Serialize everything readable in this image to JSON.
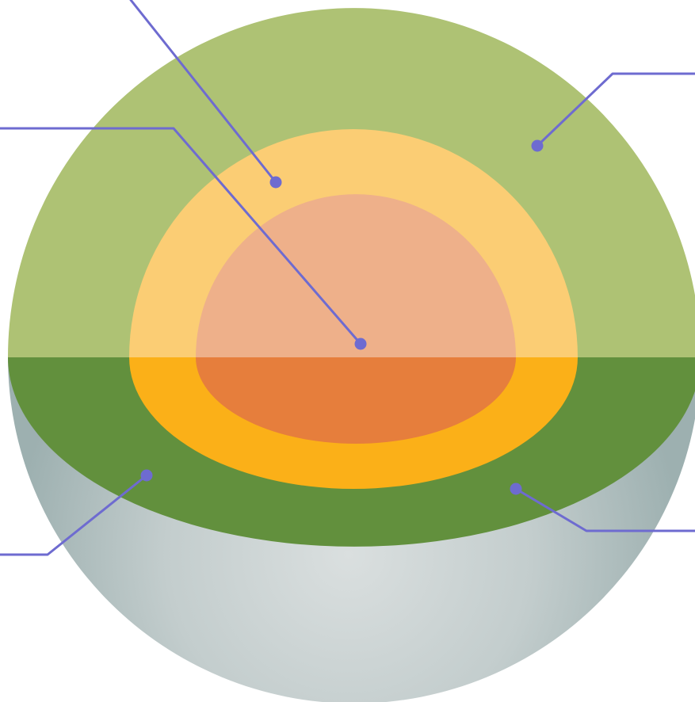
{
  "diagram": {
    "type": "cutaway-sphere-layers",
    "layer_count": 3,
    "layers": [
      {
        "id": "outer",
        "colors": {
          "top": "#AEC274",
          "cut": "#62903D"
        }
      },
      {
        "id": "middle",
        "colors": {
          "top": "#FBCD74",
          "cut": "#FBB018"
        }
      },
      {
        "id": "core",
        "colors": {
          "top": "#EEB08A",
          "cut": "#E67E3C"
        }
      }
    ],
    "shell_colors": {
      "light": "#DADFDF",
      "dark": "#9DB0B0"
    },
    "callouts": [
      {
        "id": "top-left",
        "target_layer": "middle",
        "labeled": false
      },
      {
        "id": "left",
        "target_layer": "core",
        "labeled": false
      },
      {
        "id": "top-right",
        "target_layer": "outer",
        "labeled": false
      },
      {
        "id": "bottom-left",
        "target_layer": "outer",
        "labeled": false
      },
      {
        "id": "bottom-right",
        "target_layer": "outer",
        "labeled": false
      }
    ],
    "callout_color": "#6E6BD0"
  }
}
